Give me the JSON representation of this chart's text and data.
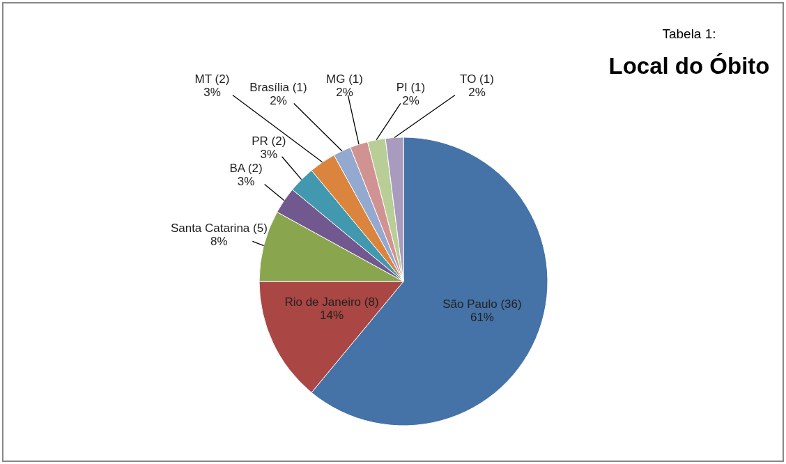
{
  "chart_data": {
    "type": "pie",
    "title": "Tabela 1:",
    "subtitle": "Local do Óbito",
    "categories": [
      "São Paulo (36)",
      "Rio de Janeiro (8)",
      "Santa Catarina (5)",
      "BA (2)",
      "PR (2)",
      "MT (2)",
      "Brasília (1)",
      "MG (1)",
      "PI (1)",
      "TO (1)"
    ],
    "values": [
      61,
      14,
      8,
      3,
      3,
      3,
      2,
      2,
      2,
      2
    ],
    "value_labels": [
      "61%",
      "14%",
      "8%",
      "3%",
      "3%",
      "3%",
      "2%",
      "2%",
      "2%",
      "2%"
    ],
    "colors": [
      "#4572a7",
      "#aa4643",
      "#89a54e",
      "#71588f",
      "#4198af",
      "#db843d",
      "#93a9cf",
      "#d19392",
      "#b9cd96",
      "#a99bbd"
    ]
  }
}
